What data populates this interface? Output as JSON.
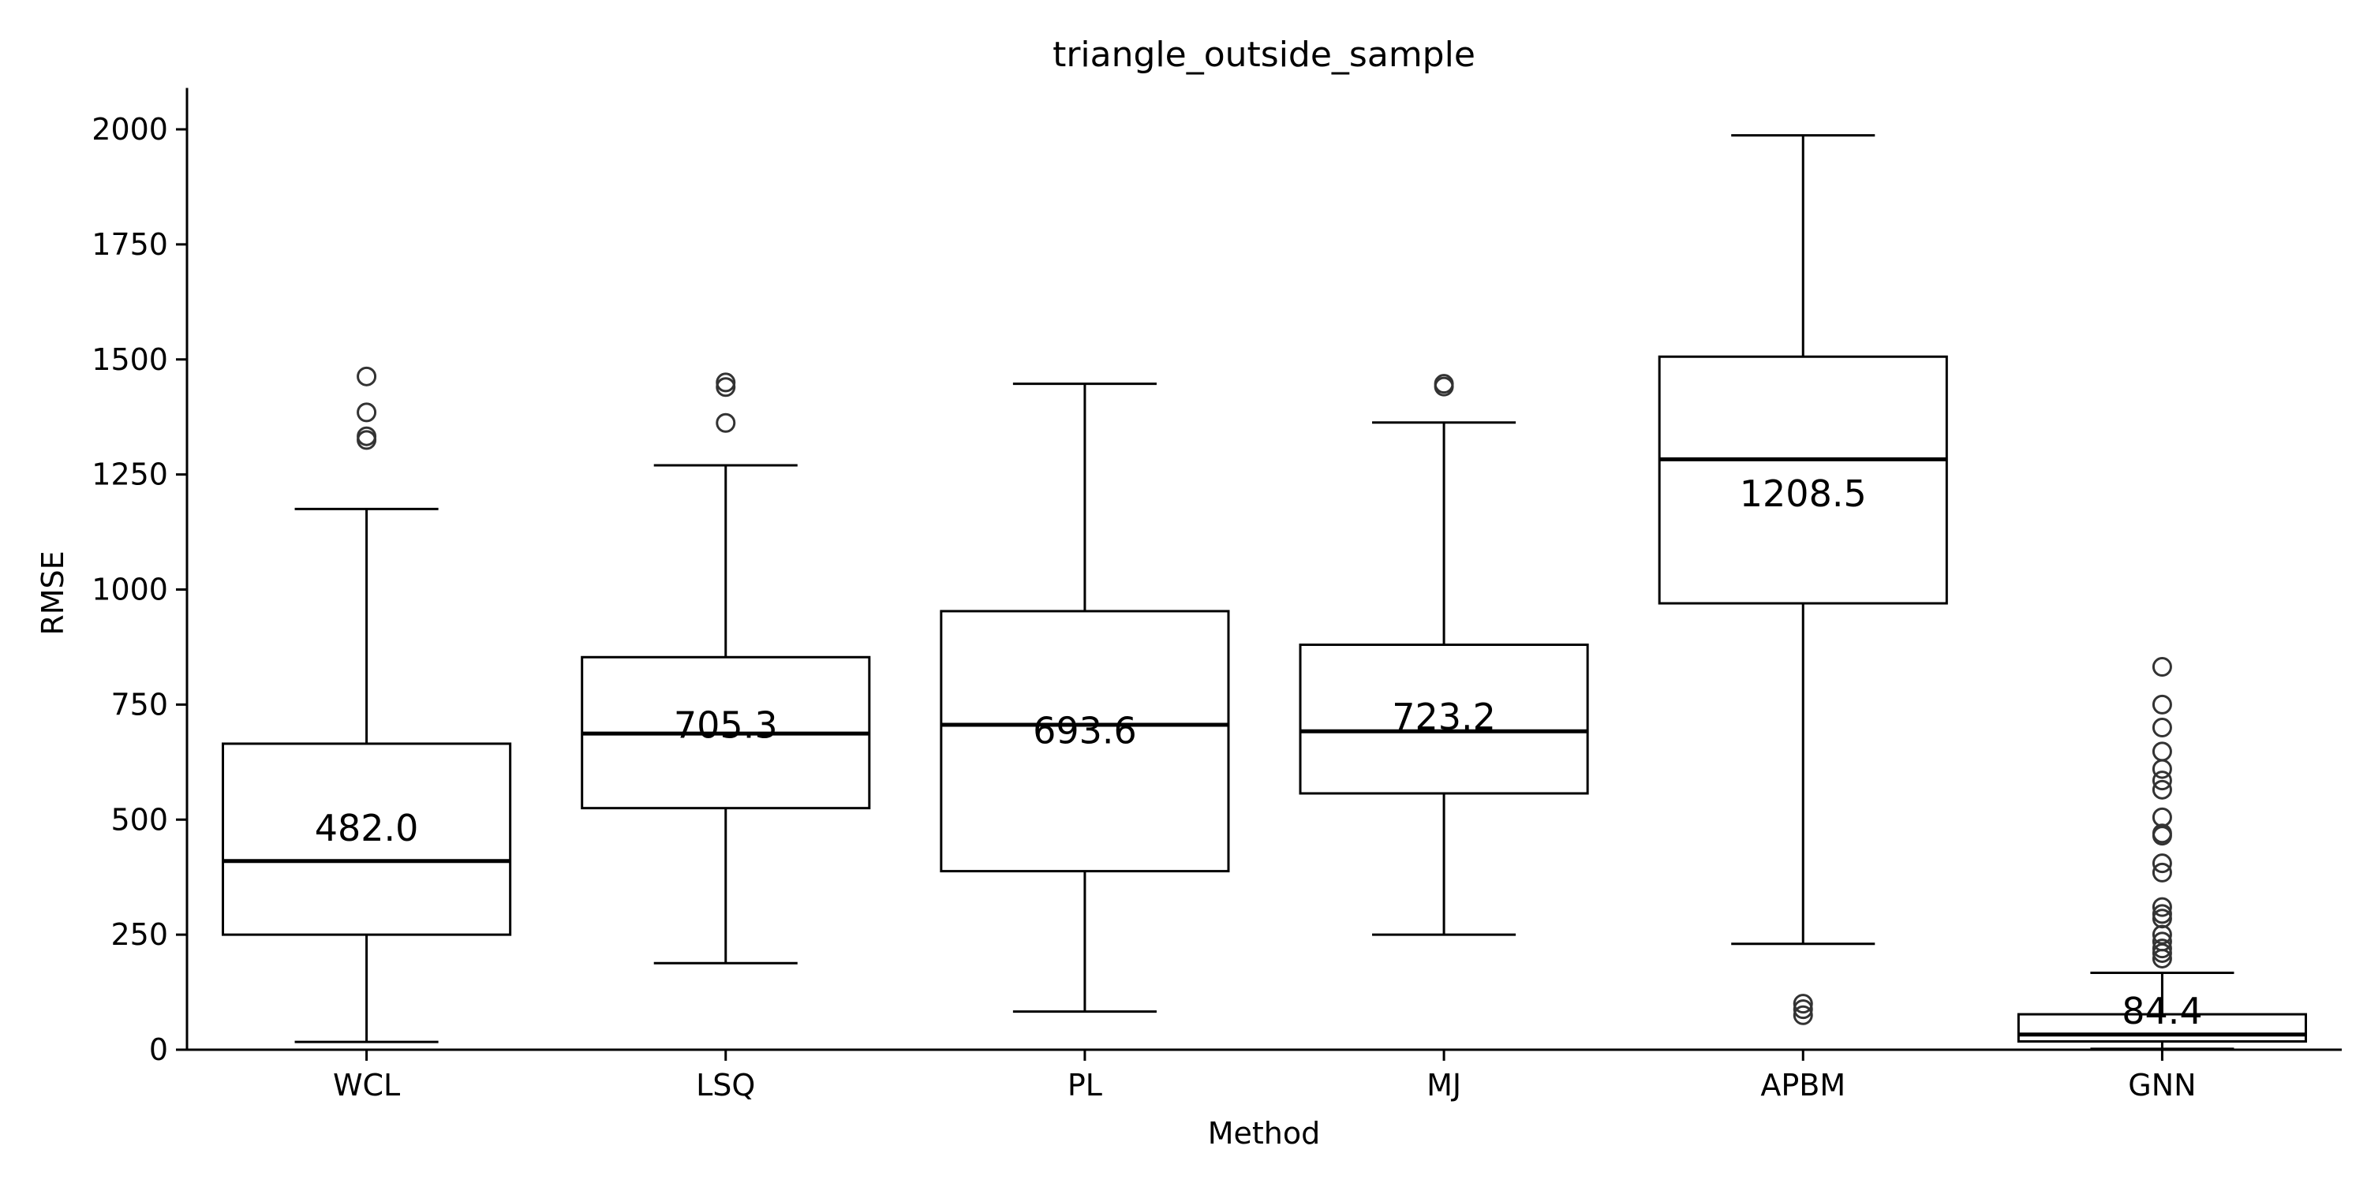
{
  "chart_data": {
    "type": "box",
    "title": "triangle_outside_sample",
    "xlabel": "Method",
    "ylabel": "RMSE",
    "ylim": [
      0,
      2090
    ],
    "yticks": [
      0,
      250,
      500,
      750,
      1000,
      1250,
      1500,
      1750,
      2000
    ],
    "grid": false,
    "categories": [
      "WCL",
      "LSQ",
      "PL",
      "MJ",
      "APBM",
      "GNN"
    ],
    "boxes": [
      {
        "label": "WCL",
        "whisker_low": 17,
        "q1": 250,
        "median": 410,
        "q3": 665,
        "whisker_high": 1175,
        "outliers": [
          1325,
          1333,
          1385,
          1463
        ],
        "mean_label": "482.0",
        "mean": 482.0
      },
      {
        "label": "LSQ",
        "whisker_low": 188,
        "q1": 525,
        "median": 687,
        "q3": 853,
        "whisker_high": 1270,
        "outliers": [
          1362,
          1440,
          1450
        ],
        "mean_label": "705.3",
        "mean": 705.3
      },
      {
        "label": "PL",
        "whisker_low": 83,
        "q1": 388,
        "median": 706,
        "q3": 953,
        "whisker_high": 1447,
        "outliers": [],
        "mean_label": "693.6",
        "mean": 693.6
      },
      {
        "label": "MJ",
        "whisker_low": 250,
        "q1": 557,
        "median": 692,
        "q3": 880,
        "whisker_high": 1363,
        "outliers": [
          1441,
          1447
        ],
        "mean_label": "723.2",
        "mean": 723.2
      },
      {
        "label": "APBM",
        "whisker_low": 230,
        "q1": 970,
        "median": 1283,
        "q3": 1506,
        "whisker_high": 1987,
        "outliers": [
          75,
          88,
          100
        ],
        "mean_label": "1208.5",
        "mean": 1208.5
      },
      {
        "label": "GNN",
        "whisker_low": 2,
        "q1": 18,
        "median": 33,
        "q3": 77,
        "whisker_high": 167,
        "outliers": [
          198,
          210,
          220,
          235,
          250,
          285,
          295,
          310,
          385,
          405,
          465,
          470,
          505,
          565,
          585,
          610,
          648,
          700,
          750,
          832
        ],
        "mean_label": "84.4",
        "mean": 84.4
      }
    ]
  }
}
